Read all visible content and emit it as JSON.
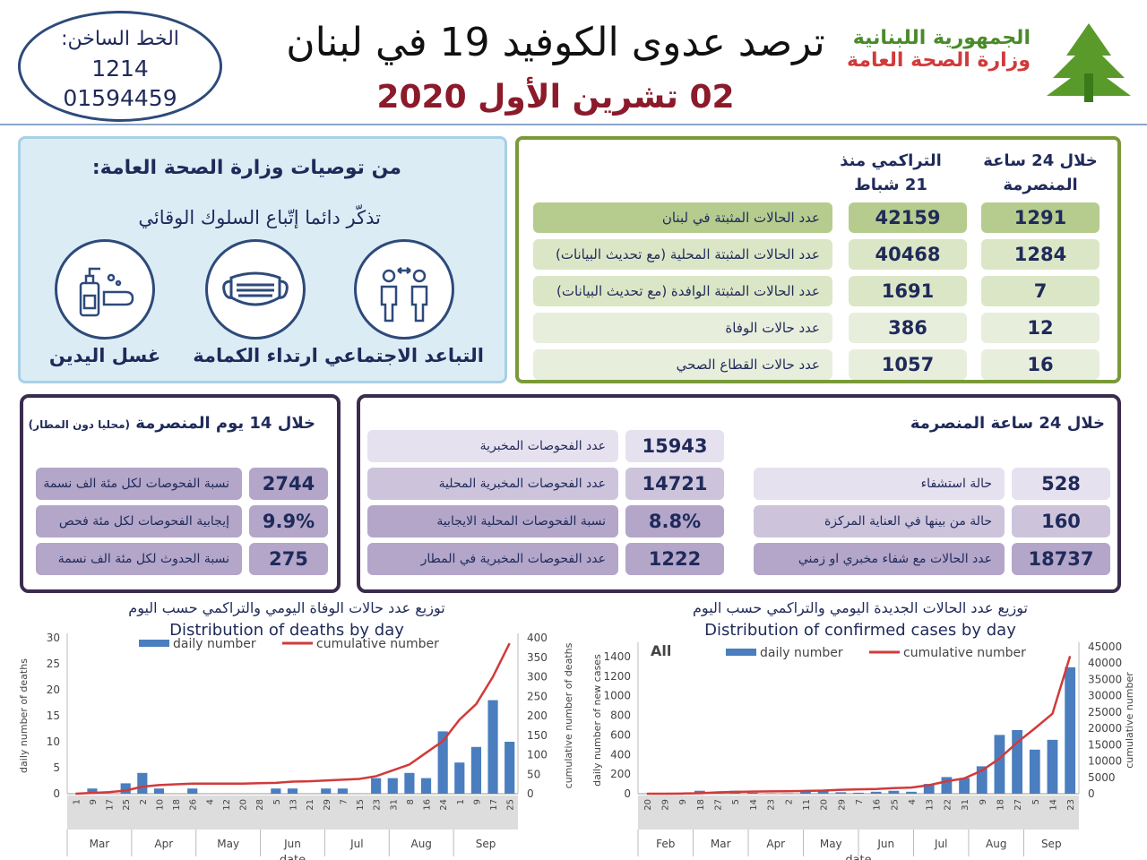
{
  "header": {
    "hotline_label": "الخط الساخن:",
    "hotline_short": "1214",
    "hotline_long": "01594459",
    "title": "ترصد عدوى الكوفيد 19 في لبنان",
    "date": "02 تشرين الأول 2020",
    "republic": "الجمهورية اللبنانية",
    "ministry": "وزارة الصحة العامة"
  },
  "recommendations": {
    "title": "من توصيات وزارة الصحة العامة:",
    "subtitle": "تذكّر دائما إتّباع السلوك الوقائي",
    "items": [
      {
        "label": "التباعد الاجتماعي",
        "icon": "social-distancing-icon"
      },
      {
        "label": "ارتداء الكمامة",
        "icon": "face-mask-icon"
      },
      {
        "label": "غسل اليدين",
        "icon": "hand-washing-icon"
      }
    ]
  },
  "summary": {
    "col_24h": "خلال 24 ساعة المنصرمة",
    "col_cum": "التراكمي منذ 21 شباط",
    "rows": [
      {
        "label": "عدد الحالات المثبتة في لبنان",
        "cum": "42159",
        "day": "1291"
      },
      {
        "label": "عدد الحالات المثبتة المحلية (مع تحديث البيانات)",
        "cum": "40468",
        "day": "1284"
      },
      {
        "label": "عدد الحالات المثبتة الوافدة (مع تحديث البيانات)",
        "cum": "1691",
        "day": "7"
      },
      {
        "label": "عدد حالات الوفاة",
        "cum": "386",
        "day": "12"
      },
      {
        "label": "عدد حالات القطاع الصحي",
        "cum": "1057",
        "day": "16"
      }
    ]
  },
  "days14": {
    "title": "خلال 14 يوم المنصرمة",
    "note": "(محليا دون المطار)",
    "rows": [
      {
        "label": "نسبة الفحوصات لكل مئة الف نسمة",
        "value": "2744"
      },
      {
        "label": "إيجابية الفحوصات لكل مئة فحص",
        "value": "9.9%"
      },
      {
        "label": "نسبة الحدوث لكل مئة الف نسمة",
        "value": "275"
      }
    ]
  },
  "h24": {
    "title": "خلال 24 ساعة المنصرمة",
    "tests": [
      {
        "label": "عدد الفحوصات المخبرية",
        "value": "15943"
      },
      {
        "label": "عدد الفحوصات المخبرية  المحلية",
        "value": "14721"
      },
      {
        "label": "نسبة الفحوصات المحلية الايجابية",
        "value": "8.8%"
      },
      {
        "label": "عدد الفحوصات المخبرية في المطار",
        "value": "1222"
      }
    ],
    "hospital": [
      {
        "label": "حالة استشفاء",
        "value": "528"
      },
      {
        "label": "حالة من بينها في العناية المركزة",
        "value": "160"
      },
      {
        "label": "عدد الحالات مع شفاء مخبري او زمني",
        "value": "18737"
      }
    ]
  },
  "colors": {
    "green_dark": "#b5cc8e",
    "green_light": "#dbe6c6",
    "green_pale": "#e8eedc",
    "purple_dark": "#b3a6c9",
    "purple_mid": "#cdc4dc",
    "purple_light": "#e6e1ee",
    "bar": "#4a7ebf",
    "line": "#d23a3a"
  },
  "chart_data": [
    {
      "type": "bar+line",
      "title_ar": "توزيع عدد حالات  الوفاة اليومي والتراكمي حسب اليوم",
      "title": "Distribution of deaths by day",
      "xlabel": "date",
      "ylabel": "daily number of deaths",
      "y2label": "cumulative number of deaths",
      "legend": [
        "daily number",
        "cumulative number"
      ],
      "legend_position": "top",
      "ylim": [
        0,
        30
      ],
      "y2lim": [
        0,
        400
      ],
      "yticks": [
        0,
        5,
        10,
        15,
        20,
        25,
        30
      ],
      "y2ticks": [
        0,
        50,
        100,
        150,
        200,
        250,
        300,
        350,
        400
      ],
      "x": [
        "1",
        "9",
        "17",
        "25",
        "2",
        "10",
        "18",
        "26",
        "4",
        "12",
        "20",
        "28",
        "5",
        "13",
        "21",
        "29",
        "7",
        "15",
        "23",
        "31",
        "8",
        "16",
        "24",
        "1",
        "9",
        "17",
        "25"
      ],
      "months": [
        "Mar",
        "Apr",
        "May",
        "Jun",
        "Jul",
        "Aug",
        "Sep"
      ],
      "daily": [
        0,
        1,
        0,
        2,
        4,
        1,
        0,
        1,
        0,
        0,
        0,
        0,
        1,
        1,
        0,
        1,
        1,
        0,
        3,
        3,
        4,
        3,
        12,
        6,
        9,
        18,
        10
      ],
      "cumulative": [
        0,
        2,
        4,
        8,
        18,
        22,
        24,
        26,
        26,
        26,
        26,
        27,
        28,
        31,
        32,
        34,
        36,
        38,
        45,
        60,
        75,
        105,
        135,
        190,
        230,
        300,
        386
      ]
    },
    {
      "type": "bar+line",
      "title_ar": "توزيع عدد الحالات الجديدة اليومي والتراكمي حسب اليوم",
      "title": "Distribution of confirmed cases by day",
      "annotation": "All",
      "xlabel": "date",
      "ylabel": "daily number of new cases",
      "y2label": "cumulative number",
      "legend": [
        "daily number",
        "cumulative number"
      ],
      "legend_position": "top",
      "ylim": [
        0,
        1500
      ],
      "y2lim": [
        0,
        45000
      ],
      "yticks": [
        0,
        200,
        400,
        600,
        800,
        1000,
        1200,
        1400
      ],
      "y2ticks": [
        0,
        5000,
        10000,
        15000,
        20000,
        25000,
        30000,
        35000,
        40000,
        45000
      ],
      "x": [
        "20",
        "29",
        "9",
        "18",
        "27",
        "5",
        "14",
        "23",
        "2",
        "11",
        "20",
        "29",
        "7",
        "16",
        "25",
        "4",
        "13",
        "22",
        "31",
        "9",
        "18",
        "27",
        "5",
        "14",
        "23"
      ],
      "months": [
        "Feb",
        "Mar",
        "Apr",
        "May",
        "Jun",
        "Jul",
        "Aug",
        "Sep"
      ],
      "daily": [
        1,
        2,
        10,
        30,
        20,
        30,
        10,
        5,
        5,
        20,
        40,
        15,
        10,
        20,
        30,
        20,
        100,
        170,
        160,
        280,
        600,
        650,
        450,
        550,
        1291
      ],
      "cumulative": [
        1,
        5,
        50,
        150,
        400,
        550,
        650,
        710,
        740,
        870,
        950,
        1200,
        1330,
        1450,
        1700,
        1900,
        2600,
        3800,
        4700,
        7100,
        10800,
        15700,
        20000,
        24500,
        42159
      ]
    }
  ]
}
